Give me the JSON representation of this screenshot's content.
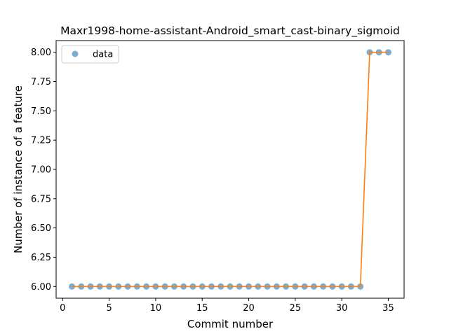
{
  "chart_data": {
    "type": "line",
    "title": "Maxr1998-home-assistant-Android_smart_cast-binary_sigmoid",
    "xlabel": "Commit number",
    "ylabel": "Number of instance of a feature",
    "xlim": [
      -0.7,
      36.7
    ],
    "ylim": [
      5.9,
      8.1
    ],
    "xticks": [
      0,
      5,
      10,
      15,
      20,
      25,
      30,
      35
    ],
    "yticks": [
      6.0,
      6.25,
      6.5,
      6.75,
      7.0,
      7.25,
      7.5,
      7.75,
      8.0
    ],
    "xtick_labels": [
      "0",
      "5",
      "10",
      "15",
      "20",
      "25",
      "30",
      "35"
    ],
    "ytick_labels": [
      "6.00",
      "6.25",
      "6.50",
      "6.75",
      "7.00",
      "7.25",
      "7.50",
      "7.75",
      "8.00"
    ],
    "legend": {
      "placement": "top-left",
      "entries": [
        "data"
      ]
    },
    "grid": false,
    "series": [
      {
        "name": "data",
        "kind": "scatter",
        "color": "#1f77b4",
        "x": [
          1,
          2,
          3,
          4,
          5,
          6,
          7,
          8,
          9,
          10,
          11,
          12,
          13,
          14,
          15,
          16,
          17,
          18,
          19,
          20,
          21,
          22,
          23,
          24,
          25,
          26,
          27,
          28,
          29,
          30,
          31,
          32,
          33,
          34,
          35
        ],
        "y": [
          6,
          6,
          6,
          6,
          6,
          6,
          6,
          6,
          6,
          6,
          6,
          6,
          6,
          6,
          6,
          6,
          6,
          6,
          6,
          6,
          6,
          6,
          6,
          6,
          6,
          6,
          6,
          6,
          6,
          6,
          6,
          6,
          8,
          8,
          8
        ]
      },
      {
        "kind": "line",
        "color": "#ff7f0e",
        "x": [
          1,
          2,
          3,
          4,
          5,
          6,
          7,
          8,
          9,
          10,
          11,
          12,
          13,
          14,
          15,
          16,
          17,
          18,
          19,
          20,
          21,
          22,
          23,
          24,
          25,
          26,
          27,
          28,
          29,
          30,
          31,
          32,
          33,
          34,
          35
        ],
        "y": [
          6,
          6,
          6,
          6,
          6,
          6,
          6,
          6,
          6,
          6,
          6,
          6,
          6,
          6,
          6,
          6,
          6,
          6,
          6,
          6,
          6,
          6,
          6,
          6,
          6,
          6,
          6,
          6,
          6,
          6,
          6,
          6,
          8,
          8,
          8
        ]
      }
    ]
  }
}
